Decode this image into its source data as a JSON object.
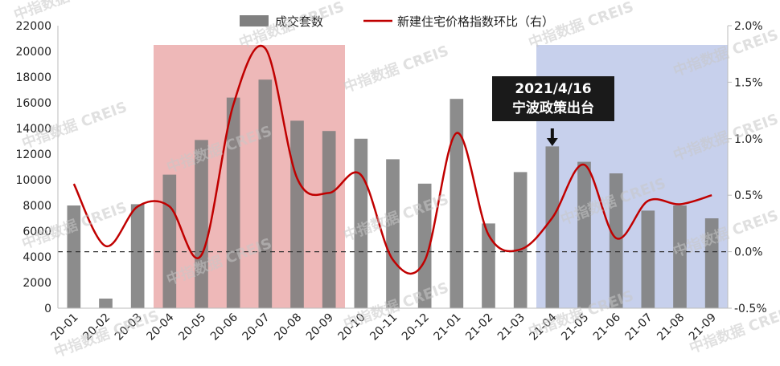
{
  "chart_data": {
    "type": "bar",
    "categories": [
      "20-01",
      "20-02",
      "20-03",
      "20-04",
      "20-05",
      "20-06",
      "20-07",
      "20-08",
      "20-09",
      "20-10",
      "20-11",
      "20-12",
      "21-01",
      "21-02",
      "21-03",
      "21-04",
      "21-05",
      "21-06",
      "21-07",
      "21-08",
      "21-09"
    ],
    "series": [
      {
        "name": "成交套数",
        "type": "bar",
        "axis": "left",
        "color": "#808080",
        "values": [
          8000,
          750,
          8100,
          10400,
          13100,
          16400,
          17800,
          14600,
          13800,
          13200,
          11600,
          9700,
          16300,
          6600,
          10600,
          12600,
          11400,
          10500,
          7600,
          8000,
          7000
        ]
      },
      {
        "name": "新建住宅价格指数环比（右）",
        "type": "line",
        "axis": "right",
        "color": "#c00000",
        "values": [
          0.6,
          0.05,
          0.4,
          0.4,
          -0.03,
          1.3,
          1.8,
          0.65,
          0.52,
          0.68,
          -0.07,
          -0.08,
          1.05,
          0.15,
          0.02,
          0.3,
          0.77,
          0.12,
          0.45,
          0.42,
          0.5
        ]
      }
    ],
    "left_axis": {
      "ylim": [
        0,
        22000
      ],
      "ticks": [
        "0",
        "2000",
        "4000",
        "6000",
        "8000",
        "10000",
        "12000",
        "14000",
        "16000",
        "18000",
        "20000",
        "22000"
      ]
    },
    "right_axis": {
      "ylim": [
        -0.5,
        2.0
      ],
      "ticks": [
        "-0.5%",
        "0.0%",
        "0.5%",
        "1.0%",
        "1.5%",
        "2.0%"
      ]
    },
    "reference_line": {
      "axis": "right",
      "value": 0.0,
      "style": "dashed"
    },
    "shaded_regions": [
      {
        "from": "20-04",
        "to": "20-09",
        "color": "#e8a0a0"
      },
      {
        "from": "21-04",
        "to": "21-09",
        "color": "#b4c0e6"
      }
    ],
    "annotation": {
      "lines": [
        "2021/4/16",
        "宁波政策出台"
      ],
      "category": "21-04",
      "arrow": "down"
    },
    "legend_position": "top-center",
    "watermark": "中指数据 CREIS"
  }
}
